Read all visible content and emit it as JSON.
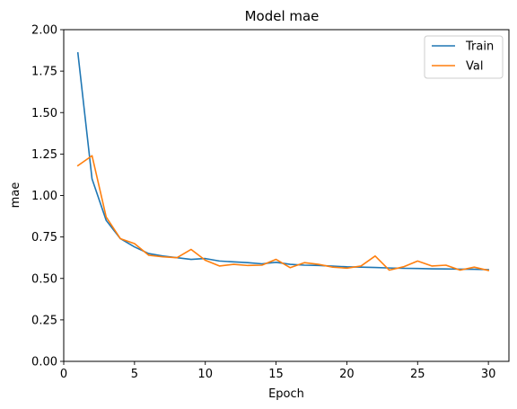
{
  "chart_data": {
    "type": "line",
    "title": "Model mae",
    "xlabel": "Epoch",
    "ylabel": "mae",
    "xlim": [
      0,
      31.45
    ],
    "ylim": [
      0,
      2.0
    ],
    "x_ticks": [
      0,
      5,
      10,
      15,
      20,
      25,
      30
    ],
    "y_ticks": [
      "0.00",
      "0.25",
      "0.50",
      "0.75",
      "1.00",
      "1.25",
      "1.50",
      "1.75",
      "2.00"
    ],
    "grid": false,
    "legend_position": "top-right",
    "x": [
      1,
      2,
      3,
      4,
      5,
      6,
      7,
      8,
      9,
      10,
      11,
      12,
      13,
      14,
      15,
      16,
      17,
      18,
      19,
      20,
      21,
      22,
      23,
      24,
      25,
      26,
      27,
      28,
      29,
      30
    ],
    "series": [
      {
        "name": "Train",
        "color": "#1f77b4",
        "values": [
          1.86,
          1.1,
          0.85,
          0.74,
          0.69,
          0.65,
          0.635,
          0.625,
          0.615,
          0.62,
          0.605,
          0.6,
          0.595,
          0.588,
          0.597,
          0.585,
          0.58,
          0.578,
          0.574,
          0.57,
          0.568,
          0.566,
          0.563,
          0.561,
          0.56,
          0.558,
          0.557,
          0.556,
          0.555,
          0.553
        ]
      },
      {
        "name": "Val",
        "color": "#ff7f0e",
        "values": [
          1.18,
          1.24,
          0.87,
          0.74,
          0.71,
          0.64,
          0.63,
          0.625,
          0.675,
          0.61,
          0.575,
          0.585,
          0.578,
          0.58,
          0.615,
          0.565,
          0.595,
          0.585,
          0.568,
          0.562,
          0.575,
          0.635,
          0.55,
          0.57,
          0.605,
          0.575,
          0.58,
          0.55,
          0.568,
          0.548
        ]
      }
    ]
  }
}
